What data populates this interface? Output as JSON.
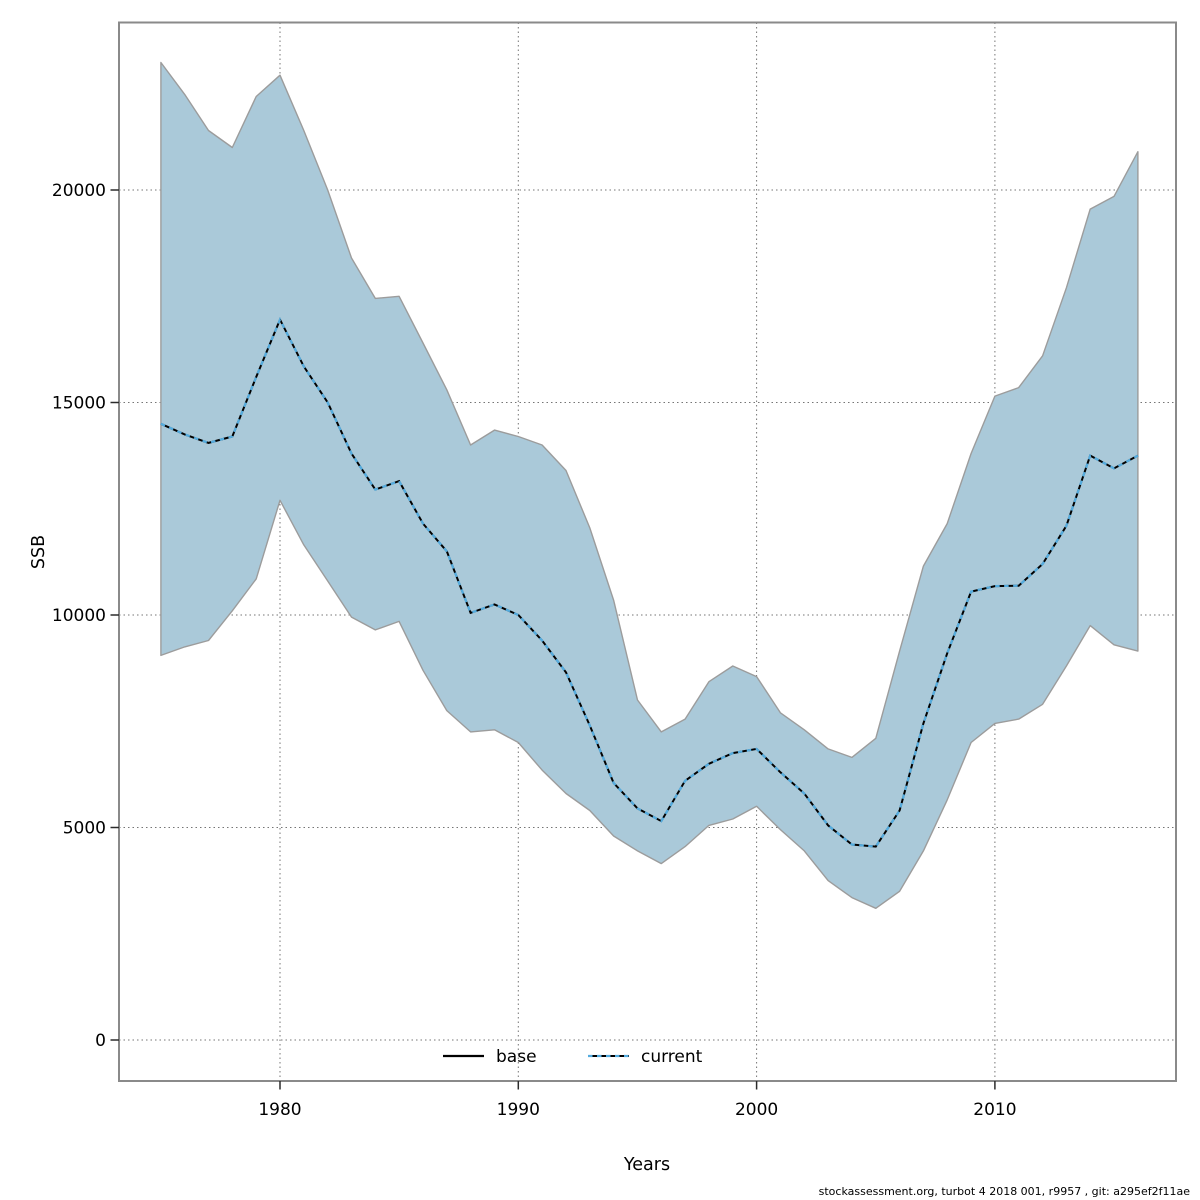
{
  "figure": {
    "footer": "stockassessment.org, turbot 4 2018 001, r9957 , git: a295ef2f11ae"
  },
  "chart_data": {
    "type": "area",
    "title": "",
    "xlabel": "Years",
    "ylabel": "SSB",
    "legend": {
      "position": "bottom-center-inside",
      "entries": [
        {
          "label": "base",
          "style": "solid-black"
        },
        {
          "label": "current",
          "style": "dashed-blue-over-black"
        }
      ]
    },
    "x_ticks": [
      1980,
      1990,
      2000,
      2010
    ],
    "y_ticks": [
      0,
      5000,
      10000,
      15000,
      20000
    ],
    "xlim": [
      1975,
      2016
    ],
    "ylim": [
      -965,
      23940
    ],
    "grid": true,
    "x": [
      1975,
      1976,
      1977,
      1978,
      1979,
      1980,
      1981,
      1982,
      1983,
      1984,
      1985,
      1986,
      1987,
      1988,
      1989,
      1990,
      1991,
      1992,
      1993,
      1994,
      1995,
      1996,
      1997,
      1998,
      1999,
      2000,
      2001,
      2002,
      2003,
      2004,
      2005,
      2006,
      2007,
      2008,
      2009,
      2010,
      2011,
      2012,
      2013,
      2014,
      2015,
      2016
    ],
    "series": [
      {
        "name": "base",
        "values": [
          14500,
          14250,
          14050,
          14200,
          15600,
          16950,
          15850,
          15000,
          13800,
          12950,
          13150,
          12150,
          11500,
          10050,
          10250,
          10000,
          9400,
          8650,
          7400,
          6050,
          5450,
          5150,
          6100,
          6500,
          6750,
          6850,
          6300,
          5800,
          5050,
          4600,
          4550,
          5400,
          7450,
          9100,
          10550,
          10680,
          10690,
          11200,
          12100,
          13750,
          13450,
          13750
        ]
      },
      {
        "name": "current",
        "values": [
          14500,
          14250,
          14050,
          14200,
          15600,
          16950,
          15850,
          15000,
          13800,
          12950,
          13150,
          12150,
          11500,
          10050,
          10250,
          10000,
          9400,
          8650,
          7400,
          6050,
          5450,
          5150,
          6100,
          6500,
          6750,
          6850,
          6300,
          5800,
          5050,
          4600,
          4550,
          5400,
          7450,
          9100,
          10550,
          10680,
          10690,
          11200,
          12100,
          13750,
          13450,
          13750
        ]
      }
    ],
    "band": {
      "name": "current-confidence-band",
      "lower": [
        9050,
        9250,
        9400,
        10100,
        10850,
        12700,
        11650,
        10800,
        9950,
        9650,
        9850,
        8700,
        7750,
        7250,
        7300,
        7000,
        6350,
        5800,
        5400,
        4800,
        4450,
        4150,
        4550,
        5050,
        5200,
        5500,
        4950,
        4450,
        3750,
        3350,
        3100,
        3500,
        4450,
        5650,
        7000,
        7450,
        7550,
        7900,
        8800,
        9750,
        9300,
        9150
      ],
      "upper": [
        23000,
        22250,
        21400,
        21000,
        22200,
        22700,
        21400,
        20000,
        18400,
        17450,
        17500,
        16400,
        15300,
        14000,
        14350,
        14200,
        14000,
        13400,
        12050,
        10350,
        8000,
        7250,
        7550,
        8430,
        8800,
        8550,
        7700,
        7300,
        6850,
        6650,
        7100,
        9150,
        11150,
        12150,
        13800,
        15150,
        15350,
        16100,
        17700,
        19550,
        19850,
        20900
      ]
    },
    "colors": {
      "band_fill": "#aac9d9",
      "band_edge": "#9c9c9c",
      "base_line": "#000000",
      "current_line": "#54acdf",
      "grid": "#757575",
      "box": "#8a8a8a",
      "tick": "#2b2b2b",
      "text": "#000000"
    }
  }
}
